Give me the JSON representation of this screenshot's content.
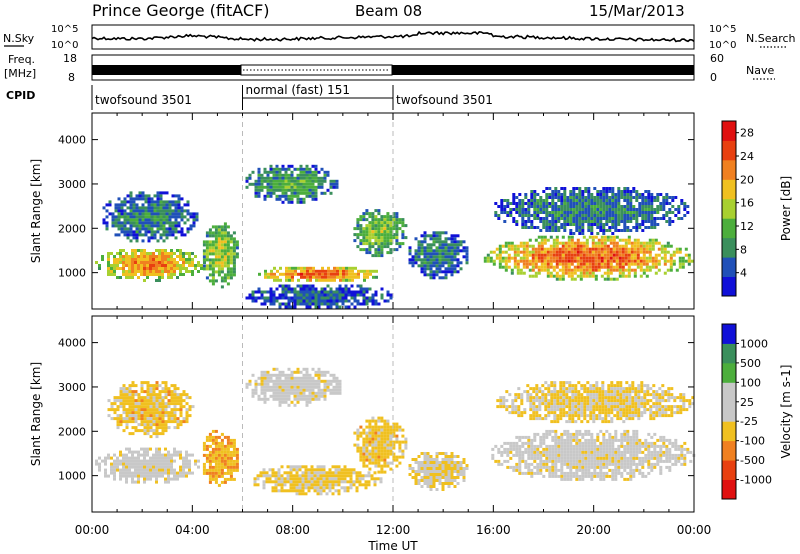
{
  "header": {
    "station": "Prince George (fitACF)",
    "beam": "Beam 08",
    "date": "15/Mar/2013"
  },
  "top_panel": {
    "left_label": "N.Sky",
    "right_label": "N.Search",
    "left_ticks": [
      "10^5",
      "10^0"
    ],
    "right_ticks": [
      "10^5",
      "10^0"
    ]
  },
  "freq_panel": {
    "left_label_1": "Freq.",
    "left_label_2": "[MHz]",
    "right_label": "Nave",
    "left_ticks": [
      "18",
      "8"
    ],
    "right_ticks": [
      "60",
      "0"
    ]
  },
  "cpid": {
    "label": "CPID",
    "segments": [
      {
        "name": "twofsound 3501",
        "start_h": 0,
        "end_h": 6
      },
      {
        "name": "normal (fast) 151",
        "start_h": 6,
        "end_h": 12
      },
      {
        "name": "twofsound 3501",
        "start_h": 12,
        "end_h": 24
      }
    ]
  },
  "xaxis": {
    "title": "Time UT",
    "ticks": [
      "00:00",
      "04:00",
      "08:00",
      "12:00",
      "16:00",
      "20:00",
      "00:00"
    ]
  },
  "colors": {
    "power": [
      "#1010d8",
      "#2050b8",
      "#3a8f5c",
      "#4cae3c",
      "#a8d030",
      "#f0c020",
      "#f08020",
      "#e84010",
      "#e01010"
    ],
    "velocity": [
      "#e01010",
      "#e84010",
      "#f08020",
      "#f0c020",
      "#c8c8c8",
      "#c8c8c8",
      "#4cae3c",
      "#3a8f5c",
      "#1010d8"
    ]
  },
  "chart_data": [
    {
      "type": "heatmap",
      "title": "",
      "ylabel": "Slant Range [km]",
      "xlabel": "",
      "xlim": [
        0,
        24
      ],
      "ylim": [
        180,
        4600
      ],
      "yticks": [
        "1000",
        "2000",
        "3000",
        "4000"
      ],
      "colorbar": {
        "label": "Power [dB]",
        "ticks": [
          "4",
          "8",
          "12",
          "16",
          "20",
          "24",
          "28"
        ],
        "range": [
          0,
          30
        ]
      },
      "regions": [
        {
          "t": [
            0,
            4.5
          ],
          "r": [
            850,
            1600
          ],
          "level": 22
        },
        {
          "t": [
            0.3,
            4.2
          ],
          "r": [
            1700,
            2900
          ],
          "level": 8
        },
        {
          "t": [
            4.3,
            5.8
          ],
          "r": [
            700,
            2200
          ],
          "level": 16
        },
        {
          "t": [
            6.0,
            9.8
          ],
          "r": [
            2600,
            3500
          ],
          "level": 10
        },
        {
          "t": [
            6.5,
            11.5
          ],
          "r": [
            800,
            1200
          ],
          "level": 24
        },
        {
          "t": [
            6.0,
            12.0
          ],
          "r": [
            200,
            800
          ],
          "level": 6
        },
        {
          "t": [
            10.3,
            12.5
          ],
          "r": [
            1400,
            2500
          ],
          "level": 14
        },
        {
          "t": [
            12.5,
            15.0
          ],
          "r": [
            900,
            2000
          ],
          "level": 8
        },
        {
          "t": [
            15.5,
            24.0
          ],
          "r": [
            850,
            1900
          ],
          "level": 24
        },
        {
          "t": [
            15.8,
            23.8
          ],
          "r": [
            1900,
            3000
          ],
          "level": 8
        }
      ]
    },
    {
      "type": "heatmap",
      "title": "",
      "ylabel": "Slant Range [km]",
      "xlabel": "Time UT",
      "xlim": [
        0,
        24
      ],
      "ylim": [
        180,
        4600
      ],
      "yticks": [
        "1000",
        "2000",
        "3000",
        "4000"
      ],
      "colorbar": {
        "label": "Velocity [m s-1]",
        "ticks": [
          "1000",
          "500",
          "100",
          "25",
          "-25",
          "-100",
          "-500",
          "-1000"
        ],
        "range": [
          -1000,
          1000
        ]
      },
      "regions": [
        {
          "t": [
            0,
            4.3
          ],
          "r": [
            850,
            1700
          ],
          "level": 0
        },
        {
          "t": [
            0.5,
            4.0
          ],
          "r": [
            1900,
            3200
          ],
          "level": -200
        },
        {
          "t": [
            4.3,
            5.8
          ],
          "r": [
            700,
            2100
          ],
          "level": -300
        },
        {
          "t": [
            6.0,
            10.0
          ],
          "r": [
            2600,
            3500
          ],
          "level": 0
        },
        {
          "t": [
            6.2,
            11.5
          ],
          "r": [
            600,
            1300
          ],
          "level": -150
        },
        {
          "t": [
            10.3,
            12.5
          ],
          "r": [
            1100,
            2400
          ],
          "level": -200
        },
        {
          "t": [
            12.5,
            15.0
          ],
          "r": [
            700,
            1600
          ],
          "level": -100
        },
        {
          "t": [
            15.8,
            24.0
          ],
          "r": [
            900,
            2100
          ],
          "level": 0
        },
        {
          "t": [
            16.0,
            24.0
          ],
          "r": [
            2200,
            3200
          ],
          "level": -150
        }
      ]
    }
  ]
}
